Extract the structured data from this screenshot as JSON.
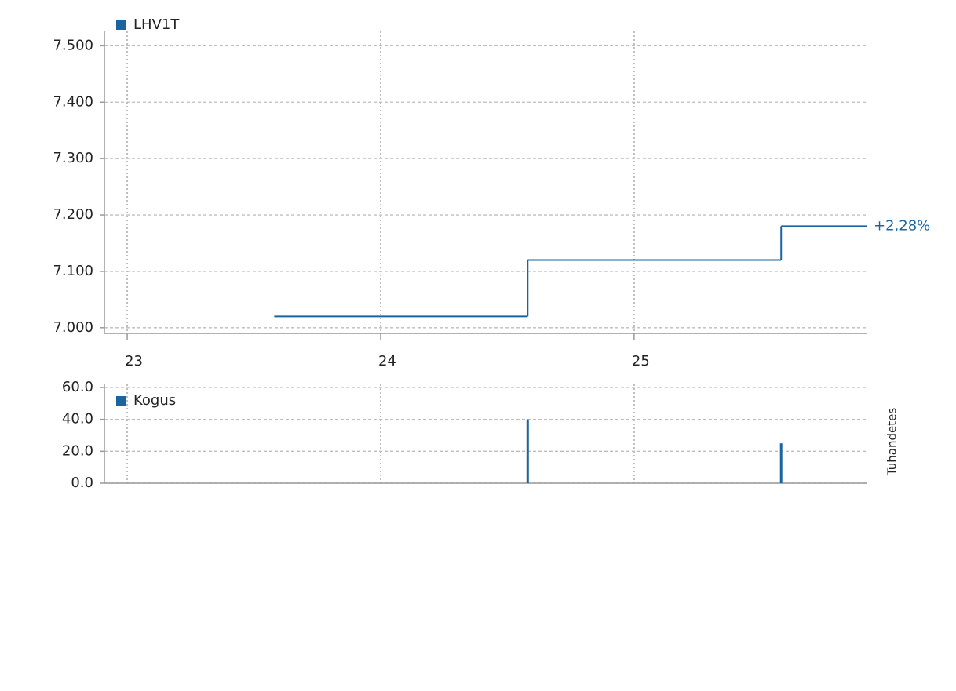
{
  "chart_data": [
    {
      "type": "line",
      "step": true,
      "x": [
        23.58,
        24.58,
        25.58
      ],
      "series": [
        {
          "name": "LHV1T",
          "color": "#1a65a0",
          "values": [
            7.02,
            7.12,
            7.18
          ]
        }
      ],
      "xlim": [
        22.91,
        25.92
      ],
      "xticks": [
        23,
        24,
        25
      ],
      "ylim": [
        6.99,
        7.52
      ],
      "yticks": [
        {
          "value": 7.0,
          "label": "7.000"
        },
        {
          "value": 7.1,
          "label": "7.100"
        },
        {
          "value": 7.2,
          "label": "7.200"
        },
        {
          "value": 7.3,
          "label": "7.300"
        },
        {
          "value": 7.4,
          "label": "7.400"
        },
        {
          "value": 7.5,
          "label": "7.500"
        }
      ],
      "annotation": "+2,28%",
      "grid": true
    },
    {
      "type": "bar",
      "x": [
        24.58,
        25.58
      ],
      "series": [
        {
          "name": "Kogus",
          "color": "#1a65a0",
          "values": [
            40,
            25
          ]
        }
      ],
      "xlim": [
        22.91,
        25.92
      ],
      "ylim": [
        0,
        60
      ],
      "yticks": [
        {
          "value": 0,
          "label": "0.0"
        },
        {
          "value": 20,
          "label": "20.0"
        },
        {
          "value": 40,
          "label": "40.0"
        },
        {
          "value": 60,
          "label": "60.0"
        }
      ],
      "y_label": "Tuhandetes",
      "grid": true
    }
  ]
}
